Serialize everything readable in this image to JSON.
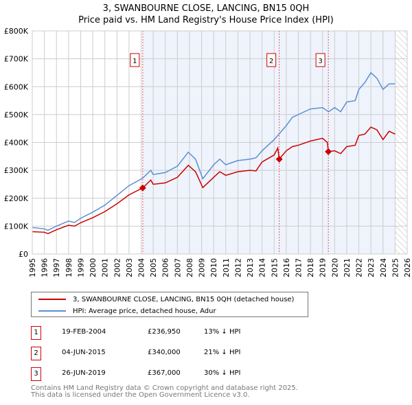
{
  "chart_data": {
    "type": "line",
    "title": "3, SWANBOURNE CLOSE, LANCING, BN15 0QH",
    "subtitle": "Price paid vs. HM Land Registry's House Price Index (HPI)",
    "xlim": [
      1995,
      2026
    ],
    "ylim": [
      0,
      800000
    ],
    "y_ticks": [
      "£0",
      "£100K",
      "£200K",
      "£300K",
      "£400K",
      "£500K",
      "£600K",
      "£700K",
      "£800K"
    ],
    "x_ticks": [
      "1995",
      "1996",
      "1997",
      "1998",
      "1999",
      "2000",
      "2001",
      "2002",
      "2003",
      "2004",
      "2005",
      "2006",
      "2007",
      "2008",
      "2009",
      "2010",
      "2011",
      "2012",
      "2013",
      "2014",
      "2015",
      "2016",
      "2017",
      "2018",
      "2019",
      "2020",
      "2021",
      "2022",
      "2023",
      "2024",
      "2025",
      "2026"
    ],
    "grid": true,
    "series": [
      {
        "name": "3, SWANBOURNE CLOSE, LANCING, BN15 0QH (detached house)",
        "color": "#cc0000",
        "x": [
          1995,
          1996,
          1996.3,
          1997,
          1998,
          1998.5,
          1999,
          2000,
          2001,
          2002,
          2003,
          2004.13,
          2004.8,
          2005,
          2006,
          2007,
          2007.9,
          2008.5,
          2009.1,
          2010,
          2010.5,
          2011,
          2012,
          2013,
          2013.5,
          2014,
          2015,
          2015.3,
          2015.42,
          2016,
          2016.5,
          2017,
          2018,
          2019,
          2019.4,
          2019.48,
          2020,
          2020.5,
          2021,
          2021.7,
          2022,
          2022.5,
          2023,
          2023.5,
          2024,
          2024.5,
          2025
        ],
        "y": [
          80000,
          78000,
          73000,
          87000,
          103000,
          100000,
          112000,
          130000,
          152000,
          180000,
          212000,
          236950,
          265000,
          250000,
          255000,
          275000,
          318000,
          295000,
          238000,
          275000,
          295000,
          282000,
          295000,
          300000,
          298000,
          330000,
          355000,
          380000,
          340000,
          370000,
          385000,
          390000,
          405000,
          415000,
          400000,
          367000,
          370000,
          360000,
          385000,
          390000,
          425000,
          430000,
          455000,
          445000,
          410000,
          440000,
          430000
        ]
      },
      {
        "name": "HPI: Average price, detached house, Adur",
        "color": "#5b8fd0",
        "x": [
          1995,
          1996,
          1996.3,
          1997,
          1998,
          1998.5,
          1999,
          2000,
          2001,
          2002,
          2003,
          2004.13,
          2004.8,
          2005,
          2006,
          2007,
          2007.9,
          2008.5,
          2009.1,
          2010,
          2010.5,
          2011,
          2012,
          2013,
          2013.5,
          2014,
          2015,
          2015.5,
          2016,
          2016.5,
          2017,
          2018,
          2019,
          2019.5,
          2020,
          2020.5,
          2021,
          2021.7,
          2022,
          2022.5,
          2023,
          2023.5,
          2024,
          2024.5,
          2025
        ],
        "y": [
          95000,
          90000,
          85000,
          100000,
          118000,
          113000,
          128000,
          150000,
          175000,
          210000,
          245000,
          272000,
          300000,
          285000,
          292000,
          315000,
          365000,
          340000,
          270000,
          320000,
          340000,
          320000,
          335000,
          340000,
          345000,
          370000,
          410000,
          435000,
          460000,
          490000,
          500000,
          520000,
          525000,
          510000,
          525000,
          510000,
          545000,
          550000,
          590000,
          615000,
          650000,
          630000,
          590000,
          610000,
          610000
        ]
      }
    ],
    "sales": [
      {
        "label": "1",
        "x": 2004.13,
        "y": 236950,
        "date": "19-FEB-2004",
        "price": "£236,950",
        "hpi": "13% ↓ HPI"
      },
      {
        "label": "2",
        "x": 2015.42,
        "y": 340000,
        "date": "04-JUN-2015",
        "price": "£340,000",
        "hpi": "21% ↓ HPI"
      },
      {
        "label": "3",
        "x": 2019.48,
        "y": 367000,
        "date": "26-JUN-2019",
        "price": "£367,000",
        "hpi": "30% ↓ HPI"
      }
    ],
    "shaded_from": 2004.13,
    "hatched_from": 2025.0
  },
  "legend": {
    "property": "3, SWANBOURNE CLOSE, LANCING, BN15 0QH (detached house)",
    "hpi": "HPI: Average price, detached house, Adur"
  },
  "footer": {
    "line1": "Contains HM Land Registry data © Crown copyright and database right 2025.",
    "line2": "This data is licensed under the Open Government Licence v3.0."
  }
}
